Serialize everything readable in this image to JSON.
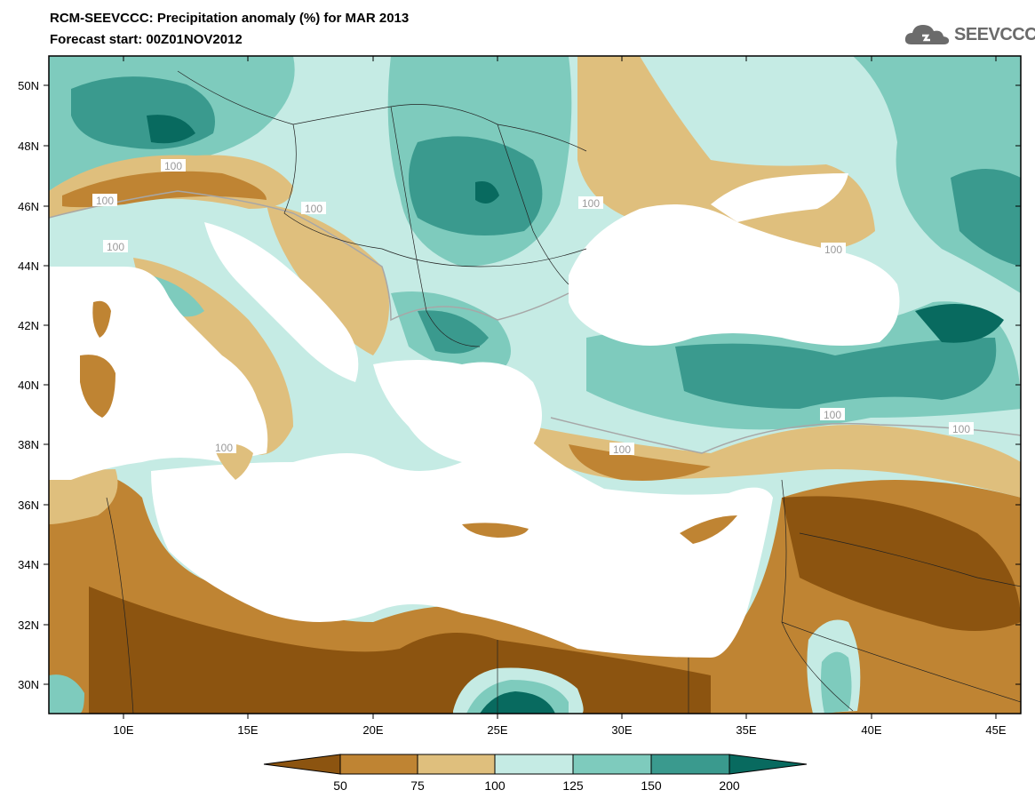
{
  "title": {
    "line1": "RCM-SEEVCCC: Precipitation anomaly (%) for MAR 2013",
    "line2": "Forecast start: 00Z01NOV2012"
  },
  "logo": {
    "text": "SEEVCCC",
    "icon": "cloud-icon"
  },
  "axes": {
    "lat_labels": [
      "50N",
      "48N",
      "46N",
      "44N",
      "42N",
      "40N",
      "38N",
      "36N",
      "34N",
      "32N",
      "30N"
    ],
    "lon_labels": [
      "10E",
      "15E",
      "20E",
      "25E",
      "30E",
      "35E",
      "40E",
      "45E"
    ]
  },
  "contour_labels": [
    "100",
    "100",
    "100",
    "100",
    "100",
    "100",
    "100",
    "100",
    "100",
    "100"
  ],
  "colorbar": {
    "ticks": [
      "50",
      "75",
      "100",
      "125",
      "150",
      "200"
    ],
    "colors": [
      "#8c5410",
      "#bf8433",
      "#dfbf7d",
      "#c5ebe4",
      "#7ecbbd",
      "#3a9a8e",
      "#086a5f"
    ]
  },
  "palette": {
    "sea": "#ffffff",
    "very_dry": "#8c5410",
    "dry": "#bf8433",
    "slightly_dry": "#dfbf7d",
    "slightly_wet": "#c5ebe4",
    "wet": "#7ecbbd",
    "very_wet": "#3a9a8e",
    "extreme_wet": "#086a5f"
  }
}
